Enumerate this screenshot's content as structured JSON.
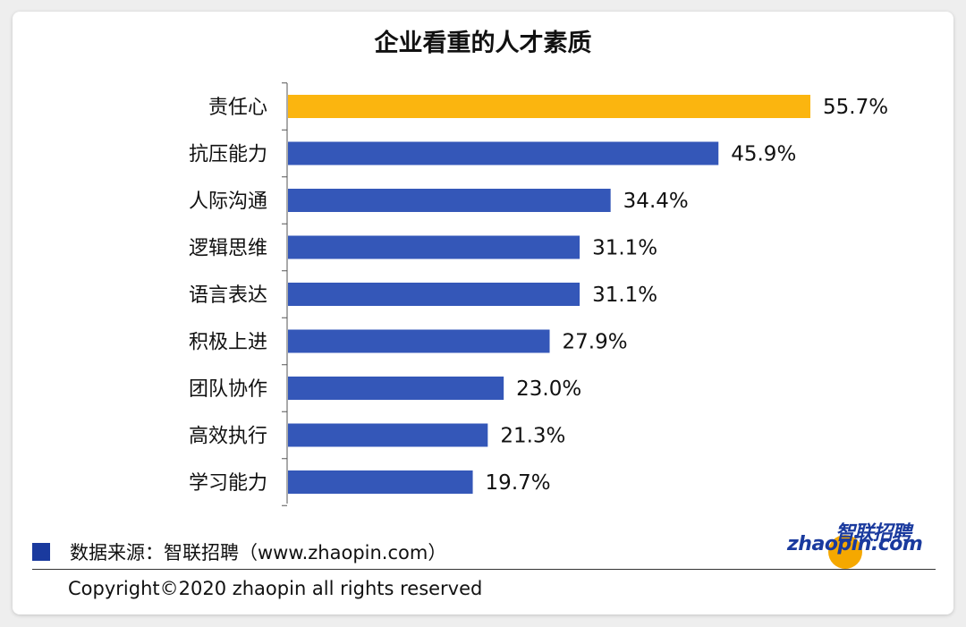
{
  "chart_data": {
    "type": "bar",
    "orientation": "horizontal",
    "title": "企业看重的人才素质",
    "categories": [
      "责任心",
      "抗压能力",
      "人际沟通",
      "逻辑思维",
      "语言表达",
      "积极上进",
      "团队协作",
      "高效执行",
      "学习能力"
    ],
    "values": [
      55.7,
      45.9,
      34.4,
      31.1,
      31.1,
      27.9,
      23.0,
      21.3,
      19.7
    ],
    "value_labels": [
      "55.7%",
      "45.9%",
      "34.4%",
      "31.1%",
      "31.1%",
      "27.9%",
      "23.0%",
      "21.3%",
      "19.7%"
    ],
    "highlight_index": 0,
    "colors": {
      "bar": "#3457b8",
      "highlight": "#fbb50f"
    },
    "xlim": [
      0,
      55.7
    ],
    "grid": false,
    "legend": "none"
  },
  "footer": {
    "source": "数据来源：智联招聘（www.zhaopin.com）",
    "copyright": "Copyright©2020 zhaopin all rights reserved"
  },
  "logo": {
    "cn": "智联招聘",
    "en": "zhaopin.com"
  }
}
